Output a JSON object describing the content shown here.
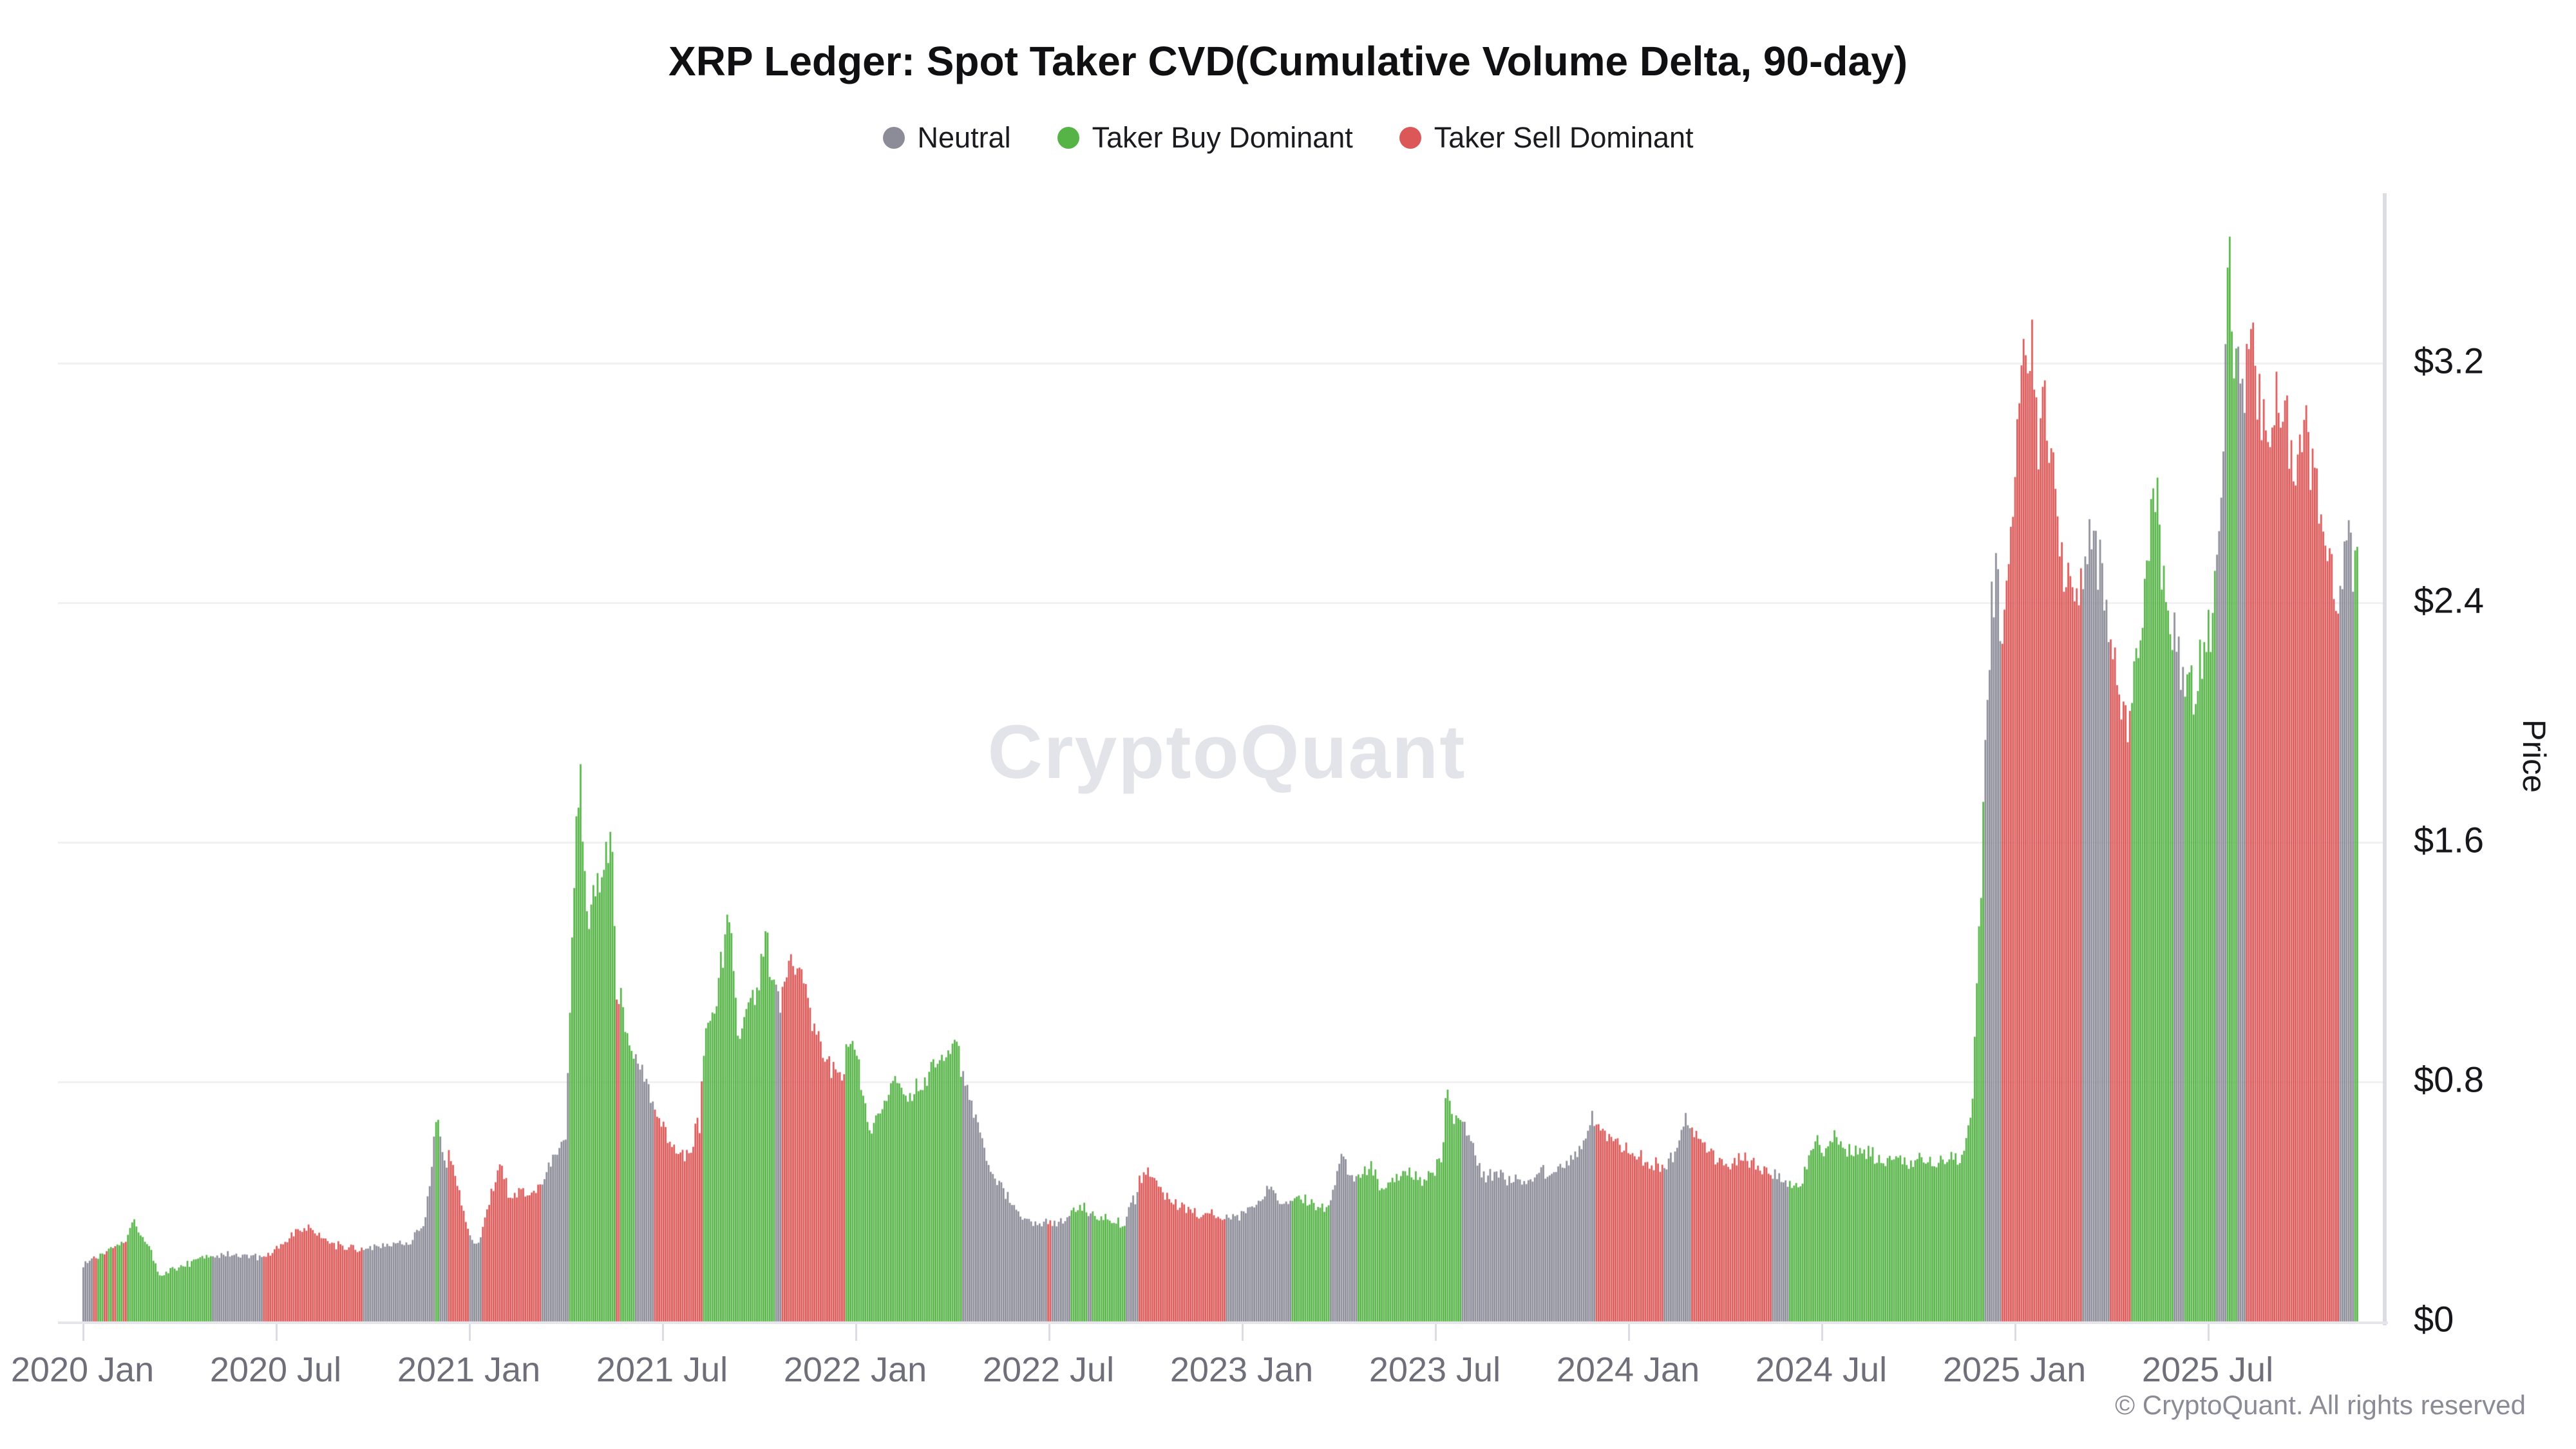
{
  "watermark": {
    "text": "CryptoQuant"
  },
  "footer": {
    "copyright": "© CryptoQuant. All rights reserved"
  },
  "chart_data": {
    "type": "bar",
    "title": "XRP Ledger: Spot Taker CVD(Cumulative Volume Delta, 90-day)",
    "ylabel": "Price",
    "legend": [
      {
        "label": "Neutral",
        "key": "n"
      },
      {
        "label": "Taker Buy Dominant",
        "key": "b"
      },
      {
        "label": "Taker Sell Dominant",
        "key": "s"
      }
    ],
    "colors": {
      "n": "#8c8c98",
      "b": "#56b447",
      "s": "#dc5757",
      "grid": "#f1f1f4",
      "axis": "#dcdce3",
      "x_label": "#6f6f7a",
      "y_label": "#17171b"
    },
    "grid": true,
    "legend_position": "top",
    "ylim": [
      0,
      3.8
    ],
    "x_range": [
      "2020 Jan",
      "2025 Nov"
    ],
    "y_ticks": [
      {
        "v": 0.0,
        "label": "$0"
      },
      {
        "v": 0.8,
        "label": "$0.8"
      },
      {
        "v": 1.6,
        "label": "$1.6"
      },
      {
        "v": 2.4,
        "label": "$2.4"
      },
      {
        "v": 3.2,
        "label": "$3.2"
      }
    ],
    "x_ticks": [
      {
        "m": 0,
        "label": "2020 Jan"
      },
      {
        "m": 6,
        "label": "2020 Jul"
      },
      {
        "m": 12,
        "label": "2021 Jan"
      },
      {
        "m": 18,
        "label": "2021 Jul"
      },
      {
        "m": 24,
        "label": "2022 Jan"
      },
      {
        "m": 30,
        "label": "2022 Jul"
      },
      {
        "m": 36,
        "label": "2023 Jan"
      },
      {
        "m": 42,
        "label": "2023 Jul"
      },
      {
        "m": 48,
        "label": "2024 Jan"
      },
      {
        "m": 54,
        "label": "2024 Jul"
      },
      {
        "m": 60,
        "label": "2025 Jan"
      },
      {
        "m": 66,
        "label": "2025 Jul"
      }
    ],
    "series_note": "anchors = [months since 2020-01, XRP price in USD, regime: n=Neutral b=TakerBuyDominant s=TakerSellDominant]; daily bars interpolate between anchors",
    "anchors": [
      [
        0,
        0.19,
        "n"
      ],
      [
        0.25,
        0.205,
        "n"
      ],
      [
        0.3,
        0.22,
        "s"
      ],
      [
        0.45,
        0.21,
        "b"
      ],
      [
        0.6,
        0.23,
        "s"
      ],
      [
        0.75,
        0.24,
        "b"
      ],
      [
        0.9,
        0.25,
        "s"
      ],
      [
        1.05,
        0.26,
        "b"
      ],
      [
        1.2,
        0.27,
        "s"
      ],
      [
        1.35,
        0.28,
        "b"
      ],
      [
        1.5,
        0.335,
        "b"
      ],
      [
        1.8,
        0.3,
        "b"
      ],
      [
        2.1,
        0.24,
        "b"
      ],
      [
        2.4,
        0.145,
        "b"
      ],
      [
        2.7,
        0.17,
        "b"
      ],
      [
        3.2,
        0.19,
        "b"
      ],
      [
        3.7,
        0.22,
        "b"
      ],
      [
        3.95,
        0.215,
        "b"
      ],
      [
        4.0,
        0.215,
        "n"
      ],
      [
        4.6,
        0.225,
        "n"
      ],
      [
        5.2,
        0.22,
        "n"
      ],
      [
        5.55,
        0.21,
        "n"
      ],
      [
        5.6,
        0.215,
        "s"
      ],
      [
        6.1,
        0.25,
        "s"
      ],
      [
        6.6,
        0.3,
        "s"
      ],
      [
        7.0,
        0.31,
        "s"
      ],
      [
        7.5,
        0.27,
        "s"
      ],
      [
        8.0,
        0.25,
        "s"
      ],
      [
        8.55,
        0.245,
        "s"
      ],
      [
        8.65,
        0.245,
        "n"
      ],
      [
        9.4,
        0.255,
        "n"
      ],
      [
        10.2,
        0.27,
        "n"
      ],
      [
        10.6,
        0.33,
        "n"
      ],
      [
        10.8,
        0.5,
        "n"
      ],
      [
        10.9,
        0.63,
        "n"
      ],
      [
        10.95,
        0.68,
        "b"
      ],
      [
        11.05,
        0.63,
        "n"
      ],
      [
        11.25,
        0.52,
        "n"
      ],
      [
        11.35,
        0.56,
        "s"
      ],
      [
        11.6,
        0.47,
        "s"
      ],
      [
        11.95,
        0.31,
        "s"
      ],
      [
        12.0,
        0.28,
        "n"
      ],
      [
        12.3,
        0.26,
        "n"
      ],
      [
        12.4,
        0.31,
        "s"
      ],
      [
        12.7,
        0.44,
        "s"
      ],
      [
        13.0,
        0.53,
        "s"
      ],
      [
        13.25,
        0.4,
        "s"
      ],
      [
        13.6,
        0.44,
        "s"
      ],
      [
        13.95,
        0.41,
        "s"
      ],
      [
        14.1,
        0.45,
        "s"
      ],
      [
        14.2,
        0.47,
        "n"
      ],
      [
        14.6,
        0.55,
        "n"
      ],
      [
        15.0,
        0.61,
        "n"
      ],
      [
        15.1,
        1.0,
        "b"
      ],
      [
        15.3,
        1.6,
        "b"
      ],
      [
        15.45,
        1.84,
        "b"
      ],
      [
        15.65,
        1.3,
        "b"
      ],
      [
        15.9,
        1.42,
        "b"
      ],
      [
        16.2,
        1.56,
        "b"
      ],
      [
        16.45,
        1.63,
        "b"
      ],
      [
        16.55,
        1.05,
        "s"
      ],
      [
        16.65,
        1.1,
        "b"
      ],
      [
        16.9,
        0.96,
        "b"
      ],
      [
        17.1,
        0.88,
        "n"
      ],
      [
        17.45,
        0.8,
        "n"
      ],
      [
        17.7,
        0.73,
        "n"
      ],
      [
        17.75,
        0.68,
        "s"
      ],
      [
        18.2,
        0.61,
        "s"
      ],
      [
        18.65,
        0.55,
        "s"
      ],
      [
        18.95,
        0.6,
        "s"
      ],
      [
        19.05,
        0.71,
        "s"
      ],
      [
        19.15,
        0.63,
        "s"
      ],
      [
        19.25,
        0.9,
        "b"
      ],
      [
        19.6,
        1.06,
        "b"
      ],
      [
        20.05,
        1.34,
        "b"
      ],
      [
        20.35,
        0.96,
        "b"
      ],
      [
        20.7,
        1.06,
        "b"
      ],
      [
        21.0,
        1.16,
        "b"
      ],
      [
        21.2,
        1.3,
        "b"
      ],
      [
        21.35,
        1.17,
        "b"
      ],
      [
        21.45,
        1.1,
        "n"
      ],
      [
        21.65,
        1.06,
        "n"
      ],
      [
        21.7,
        1.08,
        "s"
      ],
      [
        22.0,
        1.19,
        "s"
      ],
      [
        22.35,
        1.14,
        "s"
      ],
      [
        22.75,
        0.97,
        "s"
      ],
      [
        23.15,
        0.86,
        "s"
      ],
      [
        23.55,
        0.82,
        "s"
      ],
      [
        23.65,
        0.86,
        "b"
      ],
      [
        23.8,
        0.96,
        "b"
      ],
      [
        24.1,
        0.83,
        "b"
      ],
      [
        24.45,
        0.6,
        "b"
      ],
      [
        24.85,
        0.73,
        "b"
      ],
      [
        25.25,
        0.81,
        "b"
      ],
      [
        25.7,
        0.76,
        "b"
      ],
      [
        26.2,
        0.82,
        "b"
      ],
      [
        26.75,
        0.89,
        "b"
      ],
      [
        27.15,
        0.91,
        "b"
      ],
      [
        27.3,
        0.82,
        "n"
      ],
      [
        27.7,
        0.7,
        "n"
      ],
      [
        28.1,
        0.52,
        "n"
      ],
      [
        28.55,
        0.44,
        "n"
      ],
      [
        29.0,
        0.36,
        "n"
      ],
      [
        29.4,
        0.335,
        "n"
      ],
      [
        29.9,
        0.325,
        "n"
      ],
      [
        29.95,
        0.33,
        "s"
      ],
      [
        30.05,
        0.325,
        "n"
      ],
      [
        30.55,
        0.345,
        "n"
      ],
      [
        30.65,
        0.36,
        "b"
      ],
      [
        31.1,
        0.38,
        "b"
      ],
      [
        31.2,
        0.36,
        "n"
      ],
      [
        31.3,
        0.36,
        "b"
      ],
      [
        31.8,
        0.35,
        "b"
      ],
      [
        32.25,
        0.33,
        "b"
      ],
      [
        32.35,
        0.34,
        "n"
      ],
      [
        32.6,
        0.43,
        "n"
      ],
      [
        32.7,
        0.4,
        "n"
      ],
      [
        32.78,
        0.47,
        "s"
      ],
      [
        33.05,
        0.5,
        "s"
      ],
      [
        33.35,
        0.47,
        "s"
      ],
      [
        33.75,
        0.4,
        "s"
      ],
      [
        34.2,
        0.38,
        "s"
      ],
      [
        34.7,
        0.36,
        "s"
      ],
      [
        35.3,
        0.35,
        "s"
      ],
      [
        35.45,
        0.345,
        "n"
      ],
      [
        36.0,
        0.36,
        "n"
      ],
      [
        36.55,
        0.41,
        "n"
      ],
      [
        36.85,
        0.46,
        "n"
      ],
      [
        37.15,
        0.4,
        "n"
      ],
      [
        37.4,
        0.385,
        "n"
      ],
      [
        37.5,
        0.39,
        "b"
      ],
      [
        37.95,
        0.41,
        "b"
      ],
      [
        38.35,
        0.39,
        "b"
      ],
      [
        38.6,
        0.38,
        "b"
      ],
      [
        38.7,
        0.4,
        "n"
      ],
      [
        38.95,
        0.49,
        "n"
      ],
      [
        39.1,
        0.57,
        "n"
      ],
      [
        39.25,
        0.5,
        "n"
      ],
      [
        39.45,
        0.46,
        "n"
      ],
      [
        39.55,
        0.475,
        "b"
      ],
      [
        39.95,
        0.525,
        "b"
      ],
      [
        40.3,
        0.44,
        "b"
      ],
      [
        40.75,
        0.47,
        "b"
      ],
      [
        41.15,
        0.5,
        "b"
      ],
      [
        41.55,
        0.47,
        "b"
      ],
      [
        41.95,
        0.5,
        "b"
      ],
      [
        42.2,
        0.56,
        "b"
      ],
      [
        42.35,
        0.83,
        "b"
      ],
      [
        42.5,
        0.71,
        "b"
      ],
      [
        42.7,
        0.66,
        "b"
      ],
      [
        42.8,
        0.68,
        "n"
      ],
      [
        43.1,
        0.6,
        "n"
      ],
      [
        43.45,
        0.48,
        "n"
      ],
      [
        43.85,
        0.5,
        "n"
      ],
      [
        44.3,
        0.47,
        "n"
      ],
      [
        44.85,
        0.48,
        "n"
      ],
      [
        45.35,
        0.5,
        "n"
      ],
      [
        45.85,
        0.52,
        "n"
      ],
      [
        46.35,
        0.55,
        "n"
      ],
      [
        46.65,
        0.63,
        "n"
      ],
      [
        46.85,
        0.69,
        "n"
      ],
      [
        46.95,
        0.66,
        "s"
      ],
      [
        47.35,
        0.62,
        "s"
      ],
      [
        47.75,
        0.6,
        "s"
      ],
      [
        48.15,
        0.57,
        "s"
      ],
      [
        48.55,
        0.53,
        "s"
      ],
      [
        48.95,
        0.52,
        "s"
      ],
      [
        49.05,
        0.52,
        "n"
      ],
      [
        49.45,
        0.56,
        "n"
      ],
      [
        49.75,
        0.71,
        "n"
      ],
      [
        49.9,
        0.64,
        "n"
      ],
      [
        49.95,
        0.63,
        "s"
      ],
      [
        50.35,
        0.59,
        "s"
      ],
      [
        50.75,
        0.54,
        "s"
      ],
      [
        51.15,
        0.53,
        "s"
      ],
      [
        51.55,
        0.55,
        "s"
      ],
      [
        51.95,
        0.52,
        "s"
      ],
      [
        52.35,
        0.5,
        "s"
      ],
      [
        52.45,
        0.5,
        "n"
      ],
      [
        52.85,
        0.47,
        "n"
      ],
      [
        52.95,
        0.45,
        "b"
      ],
      [
        53.25,
        0.44,
        "b"
      ],
      [
        53.65,
        0.56,
        "b"
      ],
      [
        53.85,
        0.6,
        "b"
      ],
      [
        54.1,
        0.55,
        "b"
      ],
      [
        54.35,
        0.62,
        "b"
      ],
      [
        54.7,
        0.56,
        "b"
      ],
      [
        55.1,
        0.58,
        "b"
      ],
      [
        55.5,
        0.56,
        "b"
      ],
      [
        55.9,
        0.53,
        "b"
      ],
      [
        56.3,
        0.545,
        "b"
      ],
      [
        56.7,
        0.52,
        "b"
      ],
      [
        57.1,
        0.545,
        "b"
      ],
      [
        57.5,
        0.53,
        "b"
      ],
      [
        57.9,
        0.55,
        "b"
      ],
      [
        58.2,
        0.54,
        "b"
      ],
      [
        58.45,
        0.59,
        "b"
      ],
      [
        58.65,
        0.72,
        "b"
      ],
      [
        58.8,
        1.12,
        "b"
      ],
      [
        58.95,
        1.48,
        "b"
      ],
      [
        59.05,
        1.95,
        "n"
      ],
      [
        59.25,
        2.35,
        "n"
      ],
      [
        59.45,
        2.56,
        "n"
      ],
      [
        59.55,
        2.3,
        "s"
      ],
      [
        59.8,
        2.56,
        "s"
      ],
      [
        60.05,
        2.95,
        "s"
      ],
      [
        60.25,
        3.18,
        "s"
      ],
      [
        60.5,
        3.33,
        "s"
      ],
      [
        60.7,
        2.92,
        "s"
      ],
      [
        60.9,
        3.06,
        "s"
      ],
      [
        61.15,
        2.86,
        "s"
      ],
      [
        61.45,
        2.55,
        "s"
      ],
      [
        61.75,
        2.4,
        "s"
      ],
      [
        61.95,
        2.46,
        "s"
      ],
      [
        62.05,
        2.46,
        "n"
      ],
      [
        62.35,
        2.62,
        "n"
      ],
      [
        62.65,
        2.5,
        "n"
      ],
      [
        62.85,
        2.42,
        "n"
      ],
      [
        62.95,
        2.3,
        "s"
      ],
      [
        63.25,
        2.05,
        "s"
      ],
      [
        63.5,
        1.95,
        "s"
      ],
      [
        63.6,
        2.06,
        "b"
      ],
      [
        63.9,
        2.32,
        "b"
      ],
      [
        64.15,
        2.6,
        "b"
      ],
      [
        64.4,
        2.76,
        "b"
      ],
      [
        64.6,
        2.46,
        "b"
      ],
      [
        64.8,
        2.36,
        "b"
      ],
      [
        64.9,
        2.3,
        "n"
      ],
      [
        65.15,
        2.2,
        "n"
      ],
      [
        65.25,
        2.18,
        "b"
      ],
      [
        65.55,
        2.12,
        "b"
      ],
      [
        65.85,
        2.26,
        "b"
      ],
      [
        66.1,
        2.3,
        "b"
      ],
      [
        66.2,
        2.42,
        "n"
      ],
      [
        66.45,
        2.92,
        "n"
      ],
      [
        66.55,
        3.28,
        "b"
      ],
      [
        66.65,
        3.56,
        "b"
      ],
      [
        66.78,
        3.3,
        "b"
      ],
      [
        66.88,
        3.26,
        "n"
      ],
      [
        67.05,
        3.16,
        "n"
      ],
      [
        67.15,
        3.1,
        "s"
      ],
      [
        67.32,
        3.33,
        "s"
      ],
      [
        67.55,
        3.08,
        "s"
      ],
      [
        67.75,
        2.96,
        "s"
      ],
      [
        67.95,
        3.06,
        "s"
      ],
      [
        68.15,
        3.1,
        "s"
      ],
      [
        68.45,
        2.96,
        "s"
      ],
      [
        68.75,
        2.86,
        "s"
      ],
      [
        69.05,
        2.96,
        "s"
      ],
      [
        69.35,
        2.76,
        "s"
      ],
      [
        69.65,
        2.55,
        "s"
      ],
      [
        69.95,
        2.46,
        "s"
      ],
      [
        70.05,
        2.46,
        "n"
      ],
      [
        70.3,
        2.62,
        "n"
      ],
      [
        70.45,
        2.52,
        "n"
      ],
      [
        70.5,
        2.46,
        "b"
      ],
      [
        70.62,
        2.56,
        "b"
      ],
      [
        70.68,
        2.5,
        "b"
      ]
    ]
  }
}
